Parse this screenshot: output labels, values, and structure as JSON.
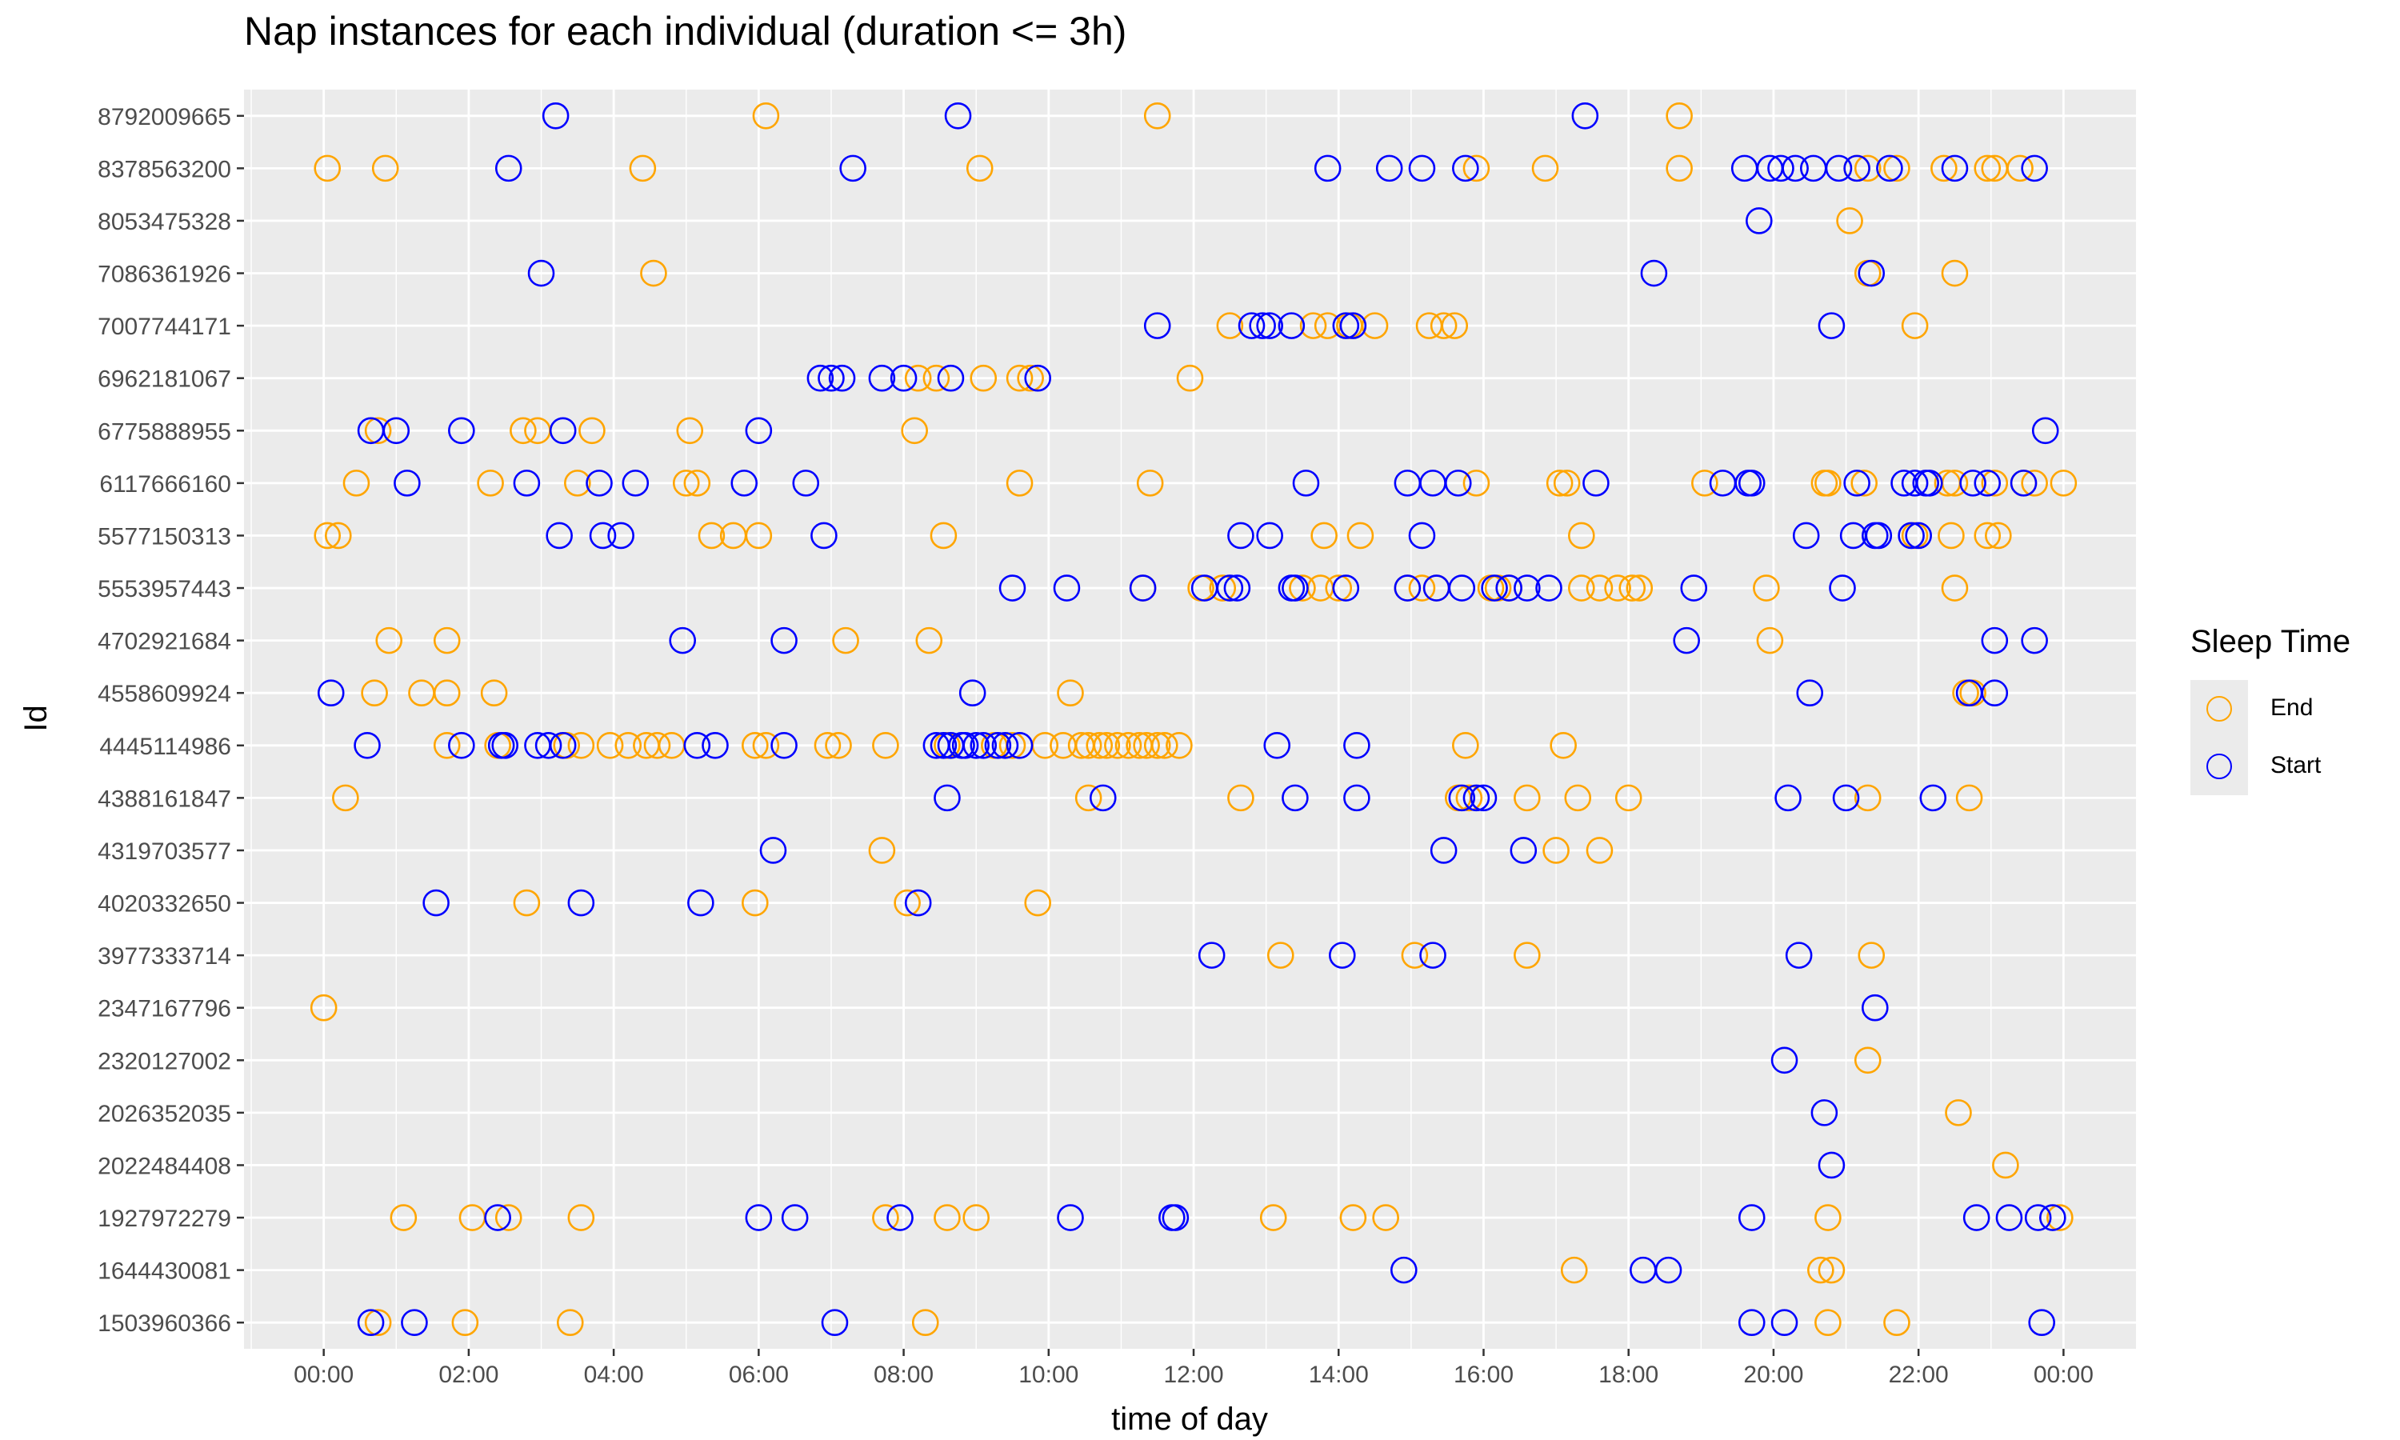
{
  "chart_data": {
    "type": "scatter",
    "title": "Nap instances for each individual (duration <= 3h)",
    "xlabel": "time of day",
    "ylabel": "Id",
    "x_unit": "hours",
    "xlim": [
      -1.1,
      25.0
    ],
    "x_ticks": [
      "00:00",
      "02:00",
      "04:00",
      "06:00",
      "08:00",
      "10:00",
      "12:00",
      "14:00",
      "16:00",
      "18:00",
      "20:00",
      "22:00",
      "00:00"
    ],
    "categories": [
      "8792009665",
      "8378563200",
      "8053475328",
      "7086361926",
      "7007744171",
      "6962181067",
      "6775888955",
      "6117666160",
      "5577150313",
      "5553957443",
      "4702921684",
      "4558609924",
      "4445114986",
      "4388161847",
      "4319703577",
      "4020332650",
      "3977333714",
      "2347167796",
      "2320127002",
      "2026352035",
      "2022484408",
      "1927972279",
      "1644430081",
      "1503960366"
    ],
    "legend": {
      "title": "Sleep Time",
      "position": "right",
      "entries": [
        {
          "name": "End",
          "color": "#FFA500"
        },
        {
          "name": "Start",
          "color": "#0000FF"
        }
      ]
    },
    "grid": true,
    "colors": {
      "panel": "#EBEBEB",
      "grid": "#FFFFFF",
      "end": "#FFA500",
      "start": "#0000FF"
    },
    "series": [
      {
        "name": "End",
        "points": [
          [
            "8792009665",
            [
              6.1,
              11.5,
              18.7
            ]
          ],
          [
            "8378563200",
            [
              0.05,
              0.85,
              4.4,
              9.05,
              15.9,
              16.85,
              18.7,
              21.15,
              21.3,
              21.7,
              22.35,
              22.95,
              23.05,
              23.4
            ]
          ],
          [
            "8053475328",
            [
              21.05
            ]
          ],
          [
            "7086361926",
            [
              4.55,
              21.3,
              22.5
            ]
          ],
          [
            "7007744171",
            [
              12.5,
              13.65,
              13.85,
              14.15,
              14.5,
              15.25,
              15.45,
              15.6,
              21.95
            ]
          ],
          [
            "6962181067",
            [
              8.2,
              8.45,
              9.1,
              9.6,
              9.75,
              11.95
            ]
          ],
          [
            "6775888955",
            [
              0.75,
              2.75,
              2.95,
              3.7,
              5.05,
              8.15
            ]
          ],
          [
            "6117666160",
            [
              0.45,
              2.3,
              3.5,
              5.0,
              5.15,
              9.6,
              11.4,
              15.9,
              17.05,
              17.15,
              19.05,
              20.7,
              20.75,
              21.25,
              22.4,
              22.5,
              23.05,
              23.45,
              23.6,
              24.0
            ]
          ],
          [
            "5577150313",
            [
              0.05,
              0.2,
              5.35,
              5.65,
              6.0,
              8.55,
              13.8,
              14.3,
              17.35,
              21.95,
              22.45,
              22.95,
              23.1
            ]
          ],
          [
            "5553957443",
            [
              11.3,
              12.1,
              12.4,
              13.5,
              13.75,
              14.0,
              14.95,
              15.15,
              15.35,
              16.1,
              16.2,
              16.35,
              17.35,
              17.6,
              17.85,
              18.05,
              18.15,
              19.9,
              22.5
            ]
          ],
          [
            "4702921684",
            [
              0.9,
              1.7,
              7.2,
              8.35,
              19.95
            ]
          ],
          [
            "4558609924",
            [
              0.7,
              1.35,
              1.7,
              2.35,
              10.3,
              22.65,
              22.75
            ]
          ],
          [
            "4445114986",
            [
              1.7,
              2.4,
              3.35,
              3.55,
              3.95,
              4.2,
              4.45,
              4.6,
              4.8,
              5.95,
              6.1,
              6.95,
              7.1,
              7.75,
              8.6,
              9.25,
              9.5,
              9.95,
              10.2,
              10.45,
              10.55,
              10.7,
              10.8,
              10.95,
              11.1,
              11.25,
              11.35,
              11.5,
              11.6,
              11.8,
              15.75,
              17.1
            ]
          ],
          [
            "4388161847",
            [
              0.3,
              10.55,
              12.65,
              15.65,
              15.8,
              16.6,
              17.3,
              18.0,
              21.3,
              22.7
            ]
          ],
          [
            "4319703577",
            [
              7.7,
              17.0,
              17.6
            ]
          ],
          [
            "4020332650",
            [
              2.8,
              5.95,
              8.05,
              9.85
            ]
          ],
          [
            "3977333714",
            [
              13.2,
              15.05,
              16.6,
              21.35
            ]
          ],
          [
            "2347167796",
            [
              0.0
            ]
          ],
          [
            "2320127002",
            [
              21.3
            ]
          ],
          [
            "2026352035",
            [
              22.55
            ]
          ],
          [
            "2022484408",
            [
              23.2
            ]
          ],
          [
            "1927972279",
            [
              1.1,
              2.05,
              2.55,
              3.55,
              7.75,
              8.6,
              9.0,
              13.1,
              14.2,
              14.65,
              20.75,
              23.95
            ]
          ],
          [
            "1644430081",
            [
              17.25,
              20.65,
              20.8
            ]
          ],
          [
            "1503960366",
            [
              0.75,
              1.95,
              3.4,
              8.3,
              20.75,
              21.7
            ]
          ]
        ]
      },
      {
        "name": "Start",
        "points": [
          [
            "8792009665",
            [
              3.2,
              8.75,
              17.4
            ]
          ],
          [
            "8378563200",
            [
              2.55,
              7.3,
              13.85,
              14.7,
              15.15,
              15.75,
              19.6,
              19.95,
              20.1,
              20.3,
              20.55,
              20.9,
              21.15,
              21.6,
              22.5,
              23.6
            ]
          ],
          [
            "8053475328",
            [
              19.8
            ]
          ],
          [
            "7086361926",
            [
              3.0,
              18.35,
              21.35
            ]
          ],
          [
            "7007744171",
            [
              11.5,
              12.8,
              12.95,
              13.05,
              13.35,
              14.1,
              14.2,
              20.8
            ]
          ],
          [
            "6962181067",
            [
              6.85,
              7.0,
              7.15,
              7.7,
              8.0,
              8.65,
              9.85
            ]
          ],
          [
            "6775888955",
            [
              0.65,
              1.0,
              1.9,
              3.3,
              6.0,
              23.75
            ]
          ],
          [
            "6117666160",
            [
              1.15,
              2.8,
              3.8,
              4.3,
              5.8,
              6.65,
              13.55,
              14.95,
              15.3,
              15.65,
              17.55,
              19.3,
              19.65,
              19.7,
              21.15,
              21.8,
              21.95,
              22.1,
              22.15,
              22.75,
              22.95,
              23.45
            ]
          ],
          [
            "5577150313",
            [
              3.25,
              3.85,
              4.1,
              6.9,
              12.65,
              13.05,
              15.15,
              20.45,
              21.1,
              21.4,
              21.45,
              21.9,
              22.0
            ]
          ],
          [
            "5553957443",
            [
              9.5,
              10.25,
              11.3,
              12.15,
              12.5,
              12.6,
              13.35,
              13.4,
              14.1,
              14.95,
              15.35,
              15.7,
              16.15,
              16.35,
              16.6,
              16.9,
              18.9,
              20.95
            ]
          ],
          [
            "4702921684",
            [
              4.95,
              6.35,
              18.8,
              23.05,
              23.6
            ]
          ],
          [
            "4558609924",
            [
              0.1,
              8.95,
              20.5,
              22.7,
              23.05
            ]
          ],
          [
            "4445114986",
            [
              0.6,
              1.9,
              2.45,
              2.5,
              2.95,
              3.1,
              3.3,
              5.15,
              5.4,
              6.35,
              8.45,
              8.55,
              8.65,
              8.8,
              8.85,
              9.0,
              9.1,
              9.3,
              9.4,
              9.6,
              13.15,
              14.25
            ]
          ],
          [
            "4388161847",
            [
              8.6,
              10.75,
              13.4,
              14.25,
              15.7,
              15.9,
              16.0,
              20.2,
              21.0,
              22.2
            ]
          ],
          [
            "4319703577",
            [
              6.2,
              15.45,
              16.55
            ]
          ],
          [
            "4020332650",
            [
              1.55,
              3.55,
              5.2,
              8.2
            ]
          ],
          [
            "3977333714",
            [
              12.25,
              14.05,
              15.3,
              20.35
            ]
          ],
          [
            "2347167796",
            [
              21.4
            ]
          ],
          [
            "2320127002",
            [
              20.15
            ]
          ],
          [
            "2026352035",
            [
              20.7
            ]
          ],
          [
            "2022484408",
            [
              20.8
            ]
          ],
          [
            "1927972279",
            [
              2.4,
              6.0,
              6.5,
              7.95,
              10.3,
              11.7,
              11.75,
              19.7,
              22.8,
              23.25,
              23.65,
              23.85
            ]
          ],
          [
            "1644430081",
            [
              14.9,
              18.2,
              18.55
            ]
          ],
          [
            "1503960366",
            [
              0.65,
              1.25,
              7.05,
              19.7,
              20.15,
              23.7
            ]
          ]
        ]
      }
    ]
  }
}
